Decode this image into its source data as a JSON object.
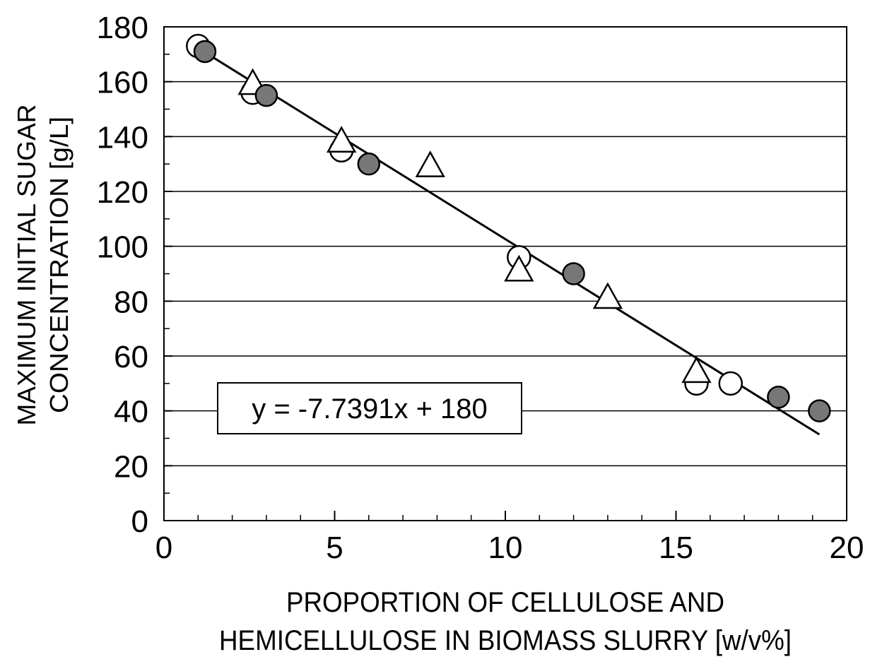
{
  "chart_data": {
    "type": "scatter",
    "xlabel_lines": [
      "PROPORTION OF CELLULOSE AND",
      "HEMICELLULOSE IN BIOMASS SLURRY [w/v%]"
    ],
    "ylabel_lines": [
      "MAXIMUM INITIAL SUGAR",
      "CONCENTRATION [g/L]"
    ],
    "xlim": [
      0,
      20
    ],
    "ylim": [
      0,
      180
    ],
    "x_ticks": [
      "0",
      "5",
      "10",
      "15",
      "20"
    ],
    "y_ticks": [
      "0",
      "20",
      "40",
      "60",
      "80",
      "100",
      "120",
      "140",
      "160",
      "180"
    ],
    "grid": "horizontal",
    "legend": "none",
    "annotation": "y = -7.7391x + 180",
    "series": [
      {
        "marker": "filled-circle",
        "points": [
          [
            1.2,
            171
          ],
          [
            3.0,
            155
          ],
          [
            6.0,
            130
          ],
          [
            12.0,
            90
          ],
          [
            18.0,
            45
          ],
          [
            19.2,
            40
          ]
        ]
      },
      {
        "marker": "open-circle",
        "points": [
          [
            1.0,
            173
          ],
          [
            2.6,
            156
          ],
          [
            5.2,
            135
          ],
          [
            10.4,
            96
          ],
          [
            15.6,
            50
          ],
          [
            16.6,
            50
          ]
        ]
      },
      {
        "marker": "open-triangle",
        "points": [
          [
            2.6,
            159
          ],
          [
            5.2,
            138
          ],
          [
            7.8,
            129
          ],
          [
            10.4,
            91
          ],
          [
            13.0,
            81
          ],
          [
            15.6,
            54
          ]
        ]
      }
    ],
    "trendline": {
      "slope": -7.7391,
      "intercept": 180,
      "x_range": [
        1.0,
        19.2
      ]
    }
  }
}
